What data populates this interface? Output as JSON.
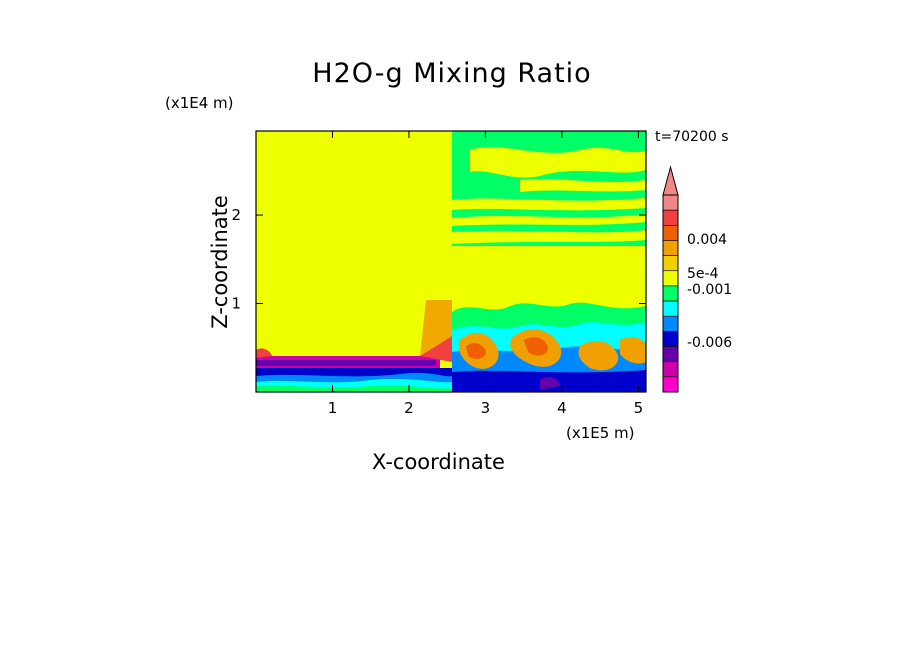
{
  "chart_data": {
    "type": "heatmap",
    "title": "H2O-g Mixing Ratio",
    "xlabel": "X-coordinate",
    "ylabel": "Z-coordinate",
    "x_scale_label": "(x1E5 m)",
    "z_scale_label": "(x1E4 m)",
    "time_label": "t=70200 s",
    "x_ticks": [
      1,
      2,
      3,
      4,
      5
    ],
    "z_ticks": [
      1,
      2
    ],
    "xlim": [
      0,
      5.1
    ],
    "zlim": [
      0,
      2.95
    ],
    "colorbar": {
      "labels": [
        {
          "text": "0.004",
          "value": 0.004
        },
        {
          "text": "5e-4",
          "value": 0.0005
        },
        {
          "text": "-0.001",
          "value": -0.001
        },
        {
          "text": "-0.006",
          "value": -0.006
        }
      ],
      "colors_top_to_bottom": [
        "#f08888",
        "#f04040",
        "#f06000",
        "#f0a000",
        "#f0d000",
        "#eeff00",
        "#00ff66",
        "#00ffff",
        "#0088ff",
        "#0000cc",
        "#6600aa",
        "#cc00aa",
        "#ff00cc"
      ]
    }
  }
}
